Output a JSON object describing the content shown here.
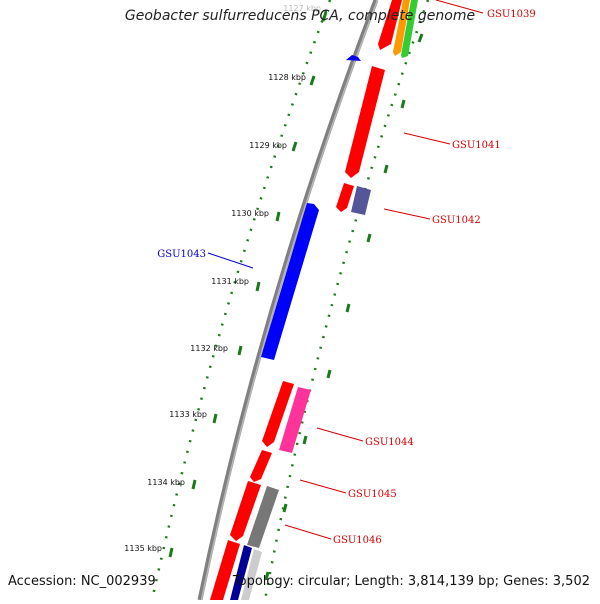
{
  "title": "Geobacter sulfurreducens PCA, complete genome",
  "footer": {
    "accession": "Accession: NC_002939",
    "topology": "Topology: circular; Length: 3,814,139 bp; Genes: 3,502"
  },
  "colors": {
    "backbone": "#808080",
    "tick_marks": "#1a7a1a",
    "forward_label": "#d40000",
    "reverse_label": "#0000cc"
  },
  "kbp_ticks": [
    {
      "label": "1127 kbp",
      "faded": true
    },
    {
      "label": "1128 kbp"
    },
    {
      "label": "1129 kbp"
    },
    {
      "label": "1130 kbp"
    },
    {
      "label": "1131 kbp"
    },
    {
      "label": "1132 kbp"
    },
    {
      "label": "1133 kbp"
    },
    {
      "label": "1134 kbp"
    },
    {
      "label": "1135 kbp"
    }
  ],
  "gene_labels": [
    {
      "text": "GSU1039",
      "strand": "forward"
    },
    {
      "text": "GSU1041",
      "strand": "forward"
    },
    {
      "text": "GSU1042",
      "strand": "forward"
    },
    {
      "text": "GSU1043",
      "strand": "reverse"
    },
    {
      "text": "GSU1044",
      "strand": "forward"
    },
    {
      "text": "GSU1045",
      "strand": "forward"
    },
    {
      "text": "GSU1046",
      "strand": "forward"
    }
  ]
}
